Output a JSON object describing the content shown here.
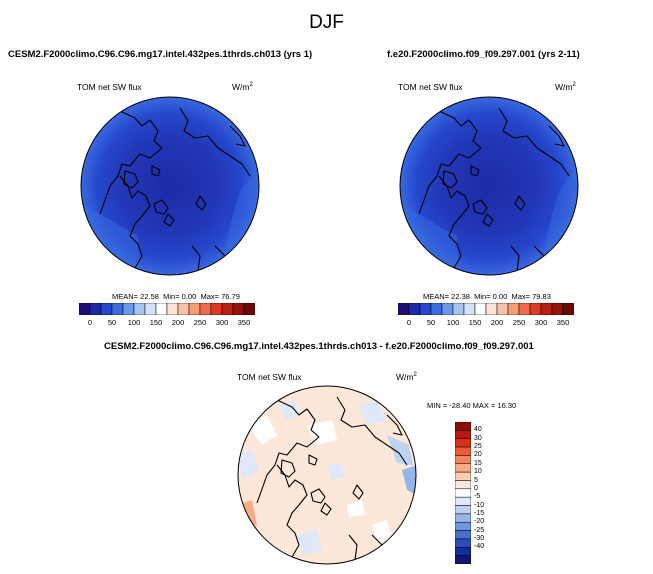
{
  "figure": {
    "season": "DJF"
  },
  "panels": [
    {
      "case": "CESM2.F2000climo.C96.C96.mg17.intel.432pes.1thrds.ch013 (yrs 1)",
      "variable": "TOM net SW flux",
      "units": "W/m",
      "units_sup": "2",
      "stats": {
        "mean_label": "MEAN=",
        "mean": "22.58",
        "min_label": "Min=",
        "min": "0.00",
        "max_label": "Max=",
        "max": "76.79"
      }
    },
    {
      "case": "f.e20.F2000climo.f09_f09.297.001 (yrs 2-11)",
      "variable": "TOM net SW flux",
      "units": "W/m",
      "units_sup": "2",
      "stats": {
        "mean_label": "MEAN=",
        "mean": "22.38",
        "min_label": "Min=",
        "min": "0.00",
        "max_label": "Max=",
        "max": "79.83"
      }
    }
  ],
  "difference": {
    "title": "CESM2.F2000climo.C96.C96.mg17.intel.432pes.1thrds.ch013 - f.e20.F2000climo.f09_f09.297.001",
    "variable": "TOM net SW flux",
    "units": "W/m",
    "units_sup": "2",
    "minmax": "MIN = -28.40 MAX =  16.30"
  },
  "chart_data": [
    {
      "type": "heatmap",
      "projection": "north-polar-stereographic",
      "colorbar": {
        "orientation": "horizontal",
        "ticks": [
          "0",
          "50",
          "100",
          "150",
          "200",
          "250",
          "300",
          "350"
        ],
        "levels": [
          0,
          25,
          50,
          75,
          100,
          125,
          150,
          175,
          200,
          225,
          250,
          275,
          300,
          325,
          350,
          375
        ],
        "colors": [
          "#1c1078",
          "#1d2aa6",
          "#2547cc",
          "#3a6be0",
          "#6a97ea",
          "#a6c4f2",
          "#d3e2f8",
          "#ffffff",
          "#fde3d3",
          "#f9c3a6",
          "#f59c77",
          "#ee6d48",
          "#dc3a22",
          "#bd1e14",
          "#951409",
          "#6a0a05"
        ]
      }
    },
    {
      "type": "heatmap",
      "projection": "north-polar-stereographic",
      "colorbar": {
        "orientation": "vertical",
        "ticks": [
          "40",
          "30",
          "25",
          "20",
          "15",
          "10",
          "5",
          "0",
          "-5",
          "-10",
          "-15",
          "-20",
          "-25",
          "-30",
          "-40"
        ],
        "colors": [
          "#8c0d07",
          "#b8150d",
          "#da2f1a",
          "#ef5a36",
          "#f6855e",
          "#f9ab88",
          "#fbcdb2",
          "#fde7d8",
          "#ffffff",
          "#dfe8f8",
          "#bcd3f2",
          "#94b6ea",
          "#6e95df",
          "#4a70cf",
          "#2a4bbb",
          "#172c9c",
          "#0f1773"
        ]
      }
    }
  ]
}
